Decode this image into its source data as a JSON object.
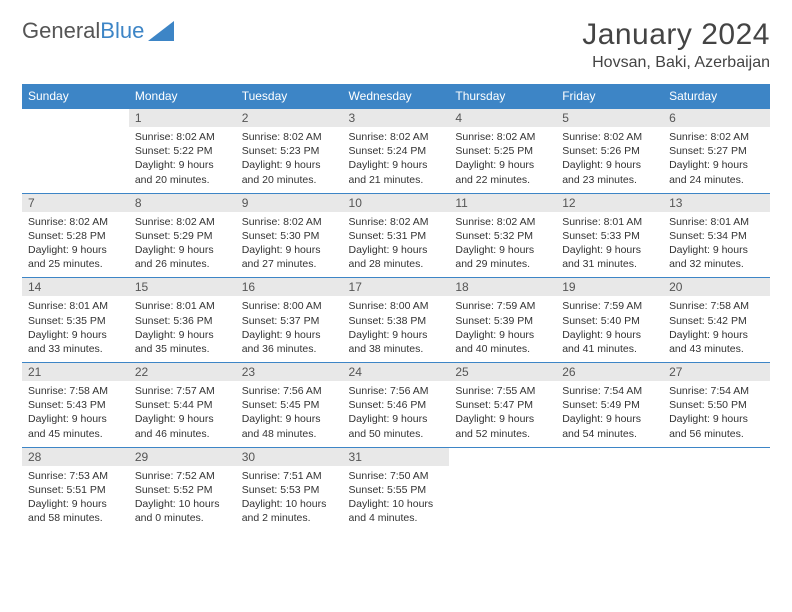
{
  "brand": {
    "part1": "General",
    "part2": "Blue"
  },
  "title": "January 2024",
  "location": "Hovsan, Baki, Azerbaijan",
  "colors": {
    "header_bg": "#3d85c6",
    "header_text": "#ffffff",
    "daynum_bg": "#e8e8e8",
    "border": "#3d85c6",
    "text": "#333333",
    "title_text": "#444444"
  },
  "weekdays": [
    "Sunday",
    "Monday",
    "Tuesday",
    "Wednesday",
    "Thursday",
    "Friday",
    "Saturday"
  ],
  "weeks": [
    [
      {
        "n": "",
        "sr": "",
        "ss": "",
        "dl": ""
      },
      {
        "n": "1",
        "sr": "Sunrise: 8:02 AM",
        "ss": "Sunset: 5:22 PM",
        "dl": "Daylight: 9 hours and 20 minutes."
      },
      {
        "n": "2",
        "sr": "Sunrise: 8:02 AM",
        "ss": "Sunset: 5:23 PM",
        "dl": "Daylight: 9 hours and 20 minutes."
      },
      {
        "n": "3",
        "sr": "Sunrise: 8:02 AM",
        "ss": "Sunset: 5:24 PM",
        "dl": "Daylight: 9 hours and 21 minutes."
      },
      {
        "n": "4",
        "sr": "Sunrise: 8:02 AM",
        "ss": "Sunset: 5:25 PM",
        "dl": "Daylight: 9 hours and 22 minutes."
      },
      {
        "n": "5",
        "sr": "Sunrise: 8:02 AM",
        "ss": "Sunset: 5:26 PM",
        "dl": "Daylight: 9 hours and 23 minutes."
      },
      {
        "n": "6",
        "sr": "Sunrise: 8:02 AM",
        "ss": "Sunset: 5:27 PM",
        "dl": "Daylight: 9 hours and 24 minutes."
      }
    ],
    [
      {
        "n": "7",
        "sr": "Sunrise: 8:02 AM",
        "ss": "Sunset: 5:28 PM",
        "dl": "Daylight: 9 hours and 25 minutes."
      },
      {
        "n": "8",
        "sr": "Sunrise: 8:02 AM",
        "ss": "Sunset: 5:29 PM",
        "dl": "Daylight: 9 hours and 26 minutes."
      },
      {
        "n": "9",
        "sr": "Sunrise: 8:02 AM",
        "ss": "Sunset: 5:30 PM",
        "dl": "Daylight: 9 hours and 27 minutes."
      },
      {
        "n": "10",
        "sr": "Sunrise: 8:02 AM",
        "ss": "Sunset: 5:31 PM",
        "dl": "Daylight: 9 hours and 28 minutes."
      },
      {
        "n": "11",
        "sr": "Sunrise: 8:02 AM",
        "ss": "Sunset: 5:32 PM",
        "dl": "Daylight: 9 hours and 29 minutes."
      },
      {
        "n": "12",
        "sr": "Sunrise: 8:01 AM",
        "ss": "Sunset: 5:33 PM",
        "dl": "Daylight: 9 hours and 31 minutes."
      },
      {
        "n": "13",
        "sr": "Sunrise: 8:01 AM",
        "ss": "Sunset: 5:34 PM",
        "dl": "Daylight: 9 hours and 32 minutes."
      }
    ],
    [
      {
        "n": "14",
        "sr": "Sunrise: 8:01 AM",
        "ss": "Sunset: 5:35 PM",
        "dl": "Daylight: 9 hours and 33 minutes."
      },
      {
        "n": "15",
        "sr": "Sunrise: 8:01 AM",
        "ss": "Sunset: 5:36 PM",
        "dl": "Daylight: 9 hours and 35 minutes."
      },
      {
        "n": "16",
        "sr": "Sunrise: 8:00 AM",
        "ss": "Sunset: 5:37 PM",
        "dl": "Daylight: 9 hours and 36 minutes."
      },
      {
        "n": "17",
        "sr": "Sunrise: 8:00 AM",
        "ss": "Sunset: 5:38 PM",
        "dl": "Daylight: 9 hours and 38 minutes."
      },
      {
        "n": "18",
        "sr": "Sunrise: 7:59 AM",
        "ss": "Sunset: 5:39 PM",
        "dl": "Daylight: 9 hours and 40 minutes."
      },
      {
        "n": "19",
        "sr": "Sunrise: 7:59 AM",
        "ss": "Sunset: 5:40 PM",
        "dl": "Daylight: 9 hours and 41 minutes."
      },
      {
        "n": "20",
        "sr": "Sunrise: 7:58 AM",
        "ss": "Sunset: 5:42 PM",
        "dl": "Daylight: 9 hours and 43 minutes."
      }
    ],
    [
      {
        "n": "21",
        "sr": "Sunrise: 7:58 AM",
        "ss": "Sunset: 5:43 PM",
        "dl": "Daylight: 9 hours and 45 minutes."
      },
      {
        "n": "22",
        "sr": "Sunrise: 7:57 AM",
        "ss": "Sunset: 5:44 PM",
        "dl": "Daylight: 9 hours and 46 minutes."
      },
      {
        "n": "23",
        "sr": "Sunrise: 7:56 AM",
        "ss": "Sunset: 5:45 PM",
        "dl": "Daylight: 9 hours and 48 minutes."
      },
      {
        "n": "24",
        "sr": "Sunrise: 7:56 AM",
        "ss": "Sunset: 5:46 PM",
        "dl": "Daylight: 9 hours and 50 minutes."
      },
      {
        "n": "25",
        "sr": "Sunrise: 7:55 AM",
        "ss": "Sunset: 5:47 PM",
        "dl": "Daylight: 9 hours and 52 minutes."
      },
      {
        "n": "26",
        "sr": "Sunrise: 7:54 AM",
        "ss": "Sunset: 5:49 PM",
        "dl": "Daylight: 9 hours and 54 minutes."
      },
      {
        "n": "27",
        "sr": "Sunrise: 7:54 AM",
        "ss": "Sunset: 5:50 PM",
        "dl": "Daylight: 9 hours and 56 minutes."
      }
    ],
    [
      {
        "n": "28",
        "sr": "Sunrise: 7:53 AM",
        "ss": "Sunset: 5:51 PM",
        "dl": "Daylight: 9 hours and 58 minutes."
      },
      {
        "n": "29",
        "sr": "Sunrise: 7:52 AM",
        "ss": "Sunset: 5:52 PM",
        "dl": "Daylight: 10 hours and 0 minutes."
      },
      {
        "n": "30",
        "sr": "Sunrise: 7:51 AM",
        "ss": "Sunset: 5:53 PM",
        "dl": "Daylight: 10 hours and 2 minutes."
      },
      {
        "n": "31",
        "sr": "Sunrise: 7:50 AM",
        "ss": "Sunset: 5:55 PM",
        "dl": "Daylight: 10 hours and 4 minutes."
      },
      {
        "n": "",
        "sr": "",
        "ss": "",
        "dl": ""
      },
      {
        "n": "",
        "sr": "",
        "ss": "",
        "dl": ""
      },
      {
        "n": "",
        "sr": "",
        "ss": "",
        "dl": ""
      }
    ]
  ]
}
